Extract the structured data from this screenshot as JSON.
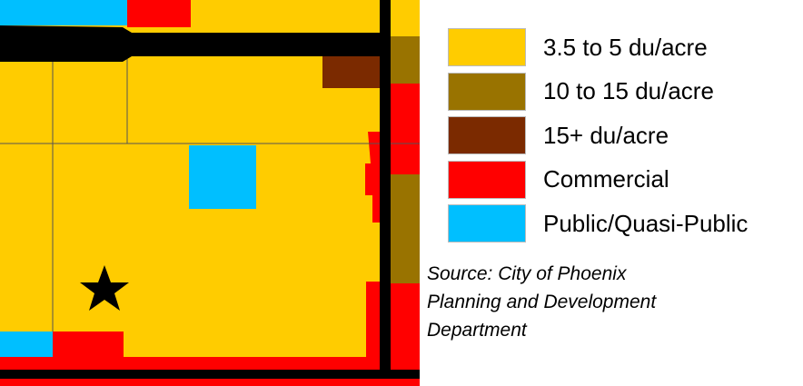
{
  "legend": {
    "items": [
      {
        "label": "3.5 to 5 du/acre",
        "color": "#ffcc00"
      },
      {
        "label": "10 to 15 du/acre",
        "color": "#997300"
      },
      {
        "label": "15+ du/acre",
        "color": "#7b2a00"
      },
      {
        "label": "Commercial",
        "color": "#ff0000"
      },
      {
        "label": "Public/Quasi-Public",
        "color": "#00bfff"
      }
    ]
  },
  "source": {
    "lines": [
      "Source: City of Phoenix",
      "Planning and Development",
      "Department"
    ]
  }
}
